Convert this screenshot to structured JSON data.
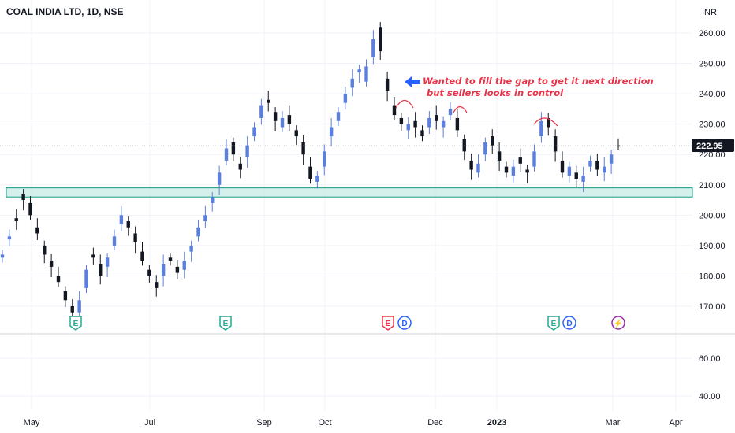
{
  "chart_data": {
    "type": "candlestick",
    "title": "COAL INDIA LTD, 1D, NSE",
    "currency": "INR",
    "last_price": "222.95",
    "price_axis": {
      "ylim": [
        163,
        267
      ],
      "ticks": [
        "260.00",
        "250.00",
        "240.00",
        "230.00",
        "220.00",
        "210.00",
        "200.00",
        "190.00",
        "180.00",
        "170.00"
      ]
    },
    "volume_axis": {
      "ticks": [
        "60.00",
        "40.00"
      ]
    },
    "x_axis": {
      "ticks": [
        "May",
        "Jul",
        "Sep",
        "Oct",
        "Dec",
        "2023",
        "Mar",
        "Apr"
      ]
    },
    "candles_close_approx": [
      [
        186,
        187
      ],
      [
        192,
        193
      ],
      [
        199,
        198
      ],
      [
        207,
        205
      ],
      [
        204,
        200
      ],
      [
        196,
        194
      ],
      [
        190,
        187
      ],
      [
        185,
        183
      ],
      [
        180,
        178
      ],
      [
        175,
        172
      ],
      [
        170,
        168
      ],
      [
        168,
        172
      ],
      [
        176,
        182
      ],
      [
        187,
        186
      ],
      [
        184,
        180
      ],
      [
        183,
        186
      ],
      [
        190,
        193
      ],
      [
        197,
        200
      ],
      [
        198,
        196
      ],
      [
        194,
        191
      ],
      [
        188,
        185
      ],
      [
        182,
        180
      ],
      [
        178,
        176
      ],
      [
        180,
        184
      ],
      [
        186,
        185
      ],
      [
        183,
        181
      ],
      [
        182,
        185
      ],
      [
        188,
        190
      ],
      [
        193,
        196
      ],
      [
        198,
        200
      ],
      [
        204,
        206
      ],
      [
        210,
        214
      ],
      [
        218,
        222
      ],
      [
        224,
        220
      ],
      [
        217,
        215
      ],
      [
        219,
        223
      ],
      [
        226,
        229
      ],
      [
        232,
        236
      ],
      [
        238,
        237
      ],
      [
        234,
        231
      ],
      [
        229,
        232
      ],
      [
        233,
        230
      ],
      [
        228,
        226
      ],
      [
        224,
        220
      ],
      [
        216,
        212
      ],
      [
        211,
        213
      ],
      [
        216,
        221
      ],
      [
        226,
        229
      ],
      [
        231,
        234
      ],
      [
        237,
        240
      ],
      [
        242,
        245
      ],
      [
        247,
        248
      ],
      [
        244,
        249
      ],
      [
        252,
        258
      ],
      [
        262,
        254
      ],
      [
        245,
        241
      ],
      [
        236,
        233
      ],
      [
        232,
        230
      ],
      [
        228,
        230
      ],
      [
        231,
        229
      ],
      [
        228,
        226
      ],
      [
        229,
        232
      ],
      [
        233,
        231
      ],
      [
        229,
        231
      ],
      [
        233,
        235
      ],
      [
        232,
        228
      ],
      [
        225,
        221
      ],
      [
        218,
        215
      ],
      [
        214,
        217
      ],
      [
        220,
        224
      ],
      [
        226,
        223
      ],
      [
        221,
        218
      ],
      [
        216,
        214
      ],
      [
        213,
        216
      ],
      [
        219,
        217
      ],
      [
        215,
        214
      ],
      [
        216,
        221
      ],
      [
        226,
        231
      ],
      [
        232,
        229
      ],
      [
        226,
        221
      ],
      [
        218,
        214
      ],
      [
        213,
        216
      ],
      [
        214,
        212
      ],
      [
        211,
        213
      ],
      [
        216,
        218
      ],
      [
        218,
        215
      ],
      [
        214,
        216
      ],
      [
        217,
        220
      ],
      [
        223,
        222.95
      ]
    ],
    "support_zone": [
      206,
      209
    ],
    "annotation": {
      "line1": "Wanted to fill the gap to get it next direction",
      "line2": "but sellers looks in control"
    },
    "events": [
      {
        "label": "E",
        "color": "#22ab94"
      },
      {
        "label": "E",
        "color": "#22ab94"
      },
      {
        "label": "E",
        "color": "#f23645"
      },
      {
        "label": "D",
        "color": "#2962ff"
      },
      {
        "label": "E",
        "color": "#22ab94"
      },
      {
        "label": "D",
        "color": "#2962ff"
      },
      {
        "label": "⚡",
        "color": "#9c27b0"
      }
    ],
    "colors": {
      "up": "#5b7fdc",
      "down": "#131722",
      "zone_fill": "#b2e3d8",
      "zone_stroke": "#0f9d84",
      "annotation": "#e8334a",
      "arrow": "#2962ff",
      "last_price_bg": "#131722"
    }
  }
}
